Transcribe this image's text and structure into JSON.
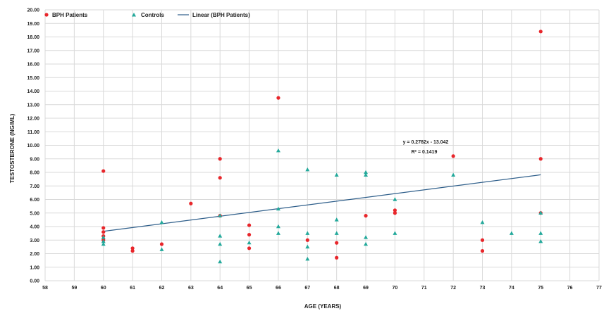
{
  "chart_data": {
    "type": "scatter",
    "title": "",
    "xlabel": "AGE (YEARS)",
    "ylabel": "TESTOSTERONE (NG/ML)",
    "xlim": [
      58,
      77
    ],
    "ylim": [
      0,
      20
    ],
    "x_ticks": [
      "58",
      "59",
      "60",
      "61",
      "62",
      "63",
      "64",
      "65",
      "66",
      "67",
      "68",
      "69",
      "70",
      "71",
      "72",
      "73",
      "74",
      "75",
      "76",
      "77"
    ],
    "y_ticks": [
      "0.00",
      "1.00",
      "2.00",
      "3.00",
      "4.00",
      "5.00",
      "6.00",
      "7.00",
      "8.00",
      "9.00",
      "10.00",
      "11.00",
      "12.00",
      "13.00",
      "14.00",
      "15.00",
      "16.00",
      "17.00",
      "18.00",
      "19.00",
      "20.00"
    ],
    "grid": true,
    "legend_position": "top-left",
    "series": [
      {
        "name": "BPH Patients",
        "marker": "circle",
        "color": "#e8262b",
        "points": [
          [
            60,
            8.1
          ],
          [
            60,
            3.9
          ],
          [
            60,
            3.6
          ],
          [
            60,
            3.3
          ],
          [
            60,
            3.0
          ],
          [
            61,
            2.4
          ],
          [
            61,
            2.2
          ],
          [
            62,
            2.7
          ],
          [
            63,
            5.7
          ],
          [
            64,
            9.0
          ],
          [
            64,
            7.6
          ],
          [
            64,
            4.8
          ],
          [
            65,
            4.1
          ],
          [
            65,
            3.4
          ],
          [
            65,
            2.4
          ],
          [
            66,
            13.5
          ],
          [
            67,
            3.0
          ],
          [
            68,
            2.8
          ],
          [
            68,
            1.7
          ],
          [
            69,
            4.8
          ],
          [
            70,
            5.2
          ],
          [
            70,
            5.0
          ],
          [
            72,
            9.2
          ],
          [
            73,
            3.0
          ],
          [
            73,
            2.2
          ],
          [
            75,
            18.4
          ],
          [
            75,
            9.0
          ],
          [
            75,
            5.0
          ]
        ]
      },
      {
        "name": "Controls",
        "marker": "triangle",
        "color": "#23a99b",
        "points": [
          [
            60,
            3.2
          ],
          [
            60,
            2.9
          ],
          [
            60,
            2.7
          ],
          [
            62,
            4.3
          ],
          [
            62,
            2.3
          ],
          [
            64,
            4.8
          ],
          [
            64,
            3.3
          ],
          [
            64,
            2.7
          ],
          [
            64,
            1.4
          ],
          [
            65,
            2.8
          ],
          [
            66,
            9.6
          ],
          [
            66,
            5.3
          ],
          [
            66,
            4.0
          ],
          [
            66,
            3.5
          ],
          [
            67,
            8.2
          ],
          [
            67,
            3.5
          ],
          [
            67,
            2.5
          ],
          [
            67,
            1.6
          ],
          [
            68,
            7.8
          ],
          [
            68,
            4.5
          ],
          [
            68,
            3.5
          ],
          [
            69,
            8.0
          ],
          [
            69,
            7.8
          ],
          [
            69,
            3.2
          ],
          [
            69,
            2.7
          ],
          [
            70,
            6.0
          ],
          [
            70,
            3.5
          ],
          [
            72,
            7.8
          ],
          [
            73,
            4.3
          ],
          [
            74,
            3.5
          ],
          [
            75,
            5.0
          ],
          [
            75,
            3.5
          ],
          [
            75,
            2.9
          ]
        ]
      }
    ],
    "trendline": {
      "name": "Linear (BPH Patients)",
      "color": "#2e5e8a",
      "slope": 0.2782,
      "intercept": -13.042,
      "x_range": [
        60,
        75
      ],
      "equation_label": "y = 0.2782x - 13.042",
      "r2_label": "R² = 0.1419"
    }
  }
}
